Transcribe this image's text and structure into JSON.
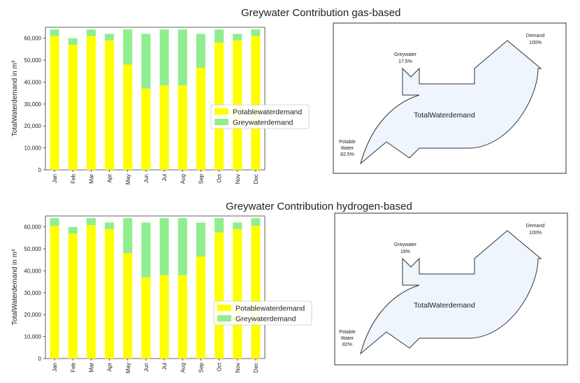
{
  "sections": [
    {
      "title": "Greywater Contribution gas-based",
      "chart_data": {
        "type": "bar",
        "stacked": true,
        "categories": [
          "Jan",
          "Feb",
          "Mar",
          "Apr",
          "May",
          "Jun",
          "Jul",
          "Aug",
          "Sep",
          "Oct",
          "Nov",
          "Dec"
        ],
        "series": [
          {
            "name": "Potablewaterdemand",
            "color": "#ffff00",
            "values": [
              61000,
              57000,
              61000,
              59000,
              48000,
              37000,
              38500,
              38500,
              46500,
              58000,
              59000,
              61000
            ]
          },
          {
            "name": "Greywaterdemand",
            "color": "#90ee90",
            "values": [
              3000,
              3000,
              3000,
              3000,
              16000,
              25000,
              25500,
              25500,
              15500,
              6000,
              3000,
              3000
            ]
          }
        ],
        "ylabel": "TotalWaterdemand in m³",
        "ylim": [
          0,
          65000
        ],
        "yticks": [
          0,
          10000,
          20000,
          30000,
          40000,
          50000,
          60000
        ],
        "ytick_labels": [
          "0",
          "10,000",
          "20,000",
          "30,000",
          "40,000",
          "50,000",
          "60,000"
        ],
        "legend_position": "center-right"
      },
      "sankey": {
        "center_label": "TotalWaterdemand",
        "greywater_label": "Greywater",
        "greywater_value": "17.5%",
        "demand_label": "Demand",
        "demand_value": "100%",
        "potable_label_1": "Potable",
        "potable_label_2": "Water",
        "potable_value": "82.5%",
        "fill": "#eef5fd"
      }
    },
    {
      "title": "Greywater Contribution hydrogen-based",
      "chart_data": {
        "type": "bar",
        "stacked": true,
        "categories": [
          "Jan",
          "Feb",
          "Mar",
          "Apr",
          "May",
          "Jun",
          "Jul",
          "Aug",
          "Sep",
          "Oct",
          "Nov",
          "Dec"
        ],
        "series": [
          {
            "name": "Potablewaterdemand",
            "color": "#ffff00",
            "values": [
              60500,
              57000,
              60800,
              59000,
              48000,
              37000,
              38000,
              38000,
              46500,
              57500,
              59000,
              60500
            ]
          },
          {
            "name": "Greywaterdemand",
            "color": "#90ee90",
            "values": [
              3500,
              3000,
              3200,
              3000,
              16000,
              25000,
              26000,
              26000,
              15500,
              6500,
              3000,
              3500
            ]
          }
        ],
        "ylabel": "TotalWaterdemand in m³",
        "ylim": [
          0,
          65000
        ],
        "yticks": [
          0,
          10000,
          20000,
          30000,
          40000,
          50000,
          60000
        ],
        "ytick_labels": [
          "0",
          "10,000",
          "20,000",
          "30,000",
          "40,000",
          "50,000",
          "60,000"
        ],
        "legend_position": "center-right"
      },
      "sankey": {
        "center_label": "TotalWaterdemand",
        "greywater_label": "Greywater",
        "greywater_value": "18%",
        "demand_label": "Demand",
        "demand_value": "100%",
        "potable_label_1": "Potable",
        "potable_label_2": "Water",
        "potable_value": "82%",
        "fill": "#eef5fd"
      }
    }
  ]
}
